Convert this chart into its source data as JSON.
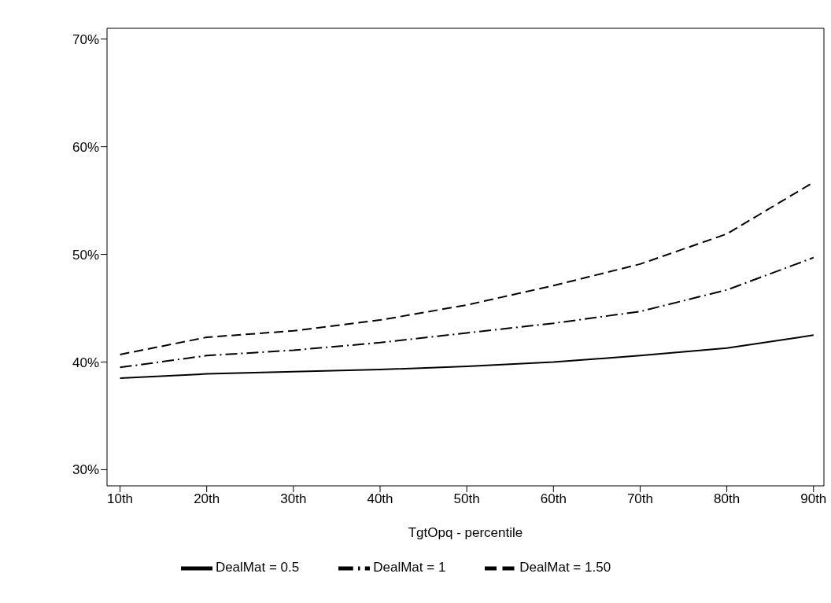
{
  "chart_data": {
    "type": "line",
    "xlabel": "TgtOpq - percentile",
    "categories": [
      "10th",
      "20th",
      "30th",
      "40th",
      "50th",
      "60th",
      "70th",
      "80th",
      "90th"
    ],
    "ylim": [
      28.5,
      71
    ],
    "yticks": [
      {
        "value": 30,
        "label": "30%"
      },
      {
        "value": 40,
        "label": "40%"
      },
      {
        "value": 50,
        "label": "50%"
      },
      {
        "value": 60,
        "label": "60%"
      },
      {
        "value": 70,
        "label": "70%"
      }
    ],
    "legend": "bottom",
    "marker": "none",
    "series": [
      {
        "name": "DealMat = 0.5",
        "color": "#000000",
        "line_style": "solid",
        "values": [
          38.5,
          38.9,
          39.1,
          39.3,
          39.6,
          40.0,
          40.6,
          41.3,
          42.5
        ]
      },
      {
        "name": "DealMat = 1",
        "color": "#000000",
        "line_style": "dashdot",
        "values": [
          39.5,
          40.6,
          41.1,
          41.8,
          42.7,
          43.6,
          44.7,
          46.7,
          49.7
        ]
      },
      {
        "name": "DealMat = 1.50",
        "color": "#000000",
        "line_style": "dashed",
        "values": [
          40.7,
          42.3,
          42.9,
          43.9,
          45.3,
          47.1,
          49.1,
          51.9,
          56.7
        ]
      }
    ]
  }
}
